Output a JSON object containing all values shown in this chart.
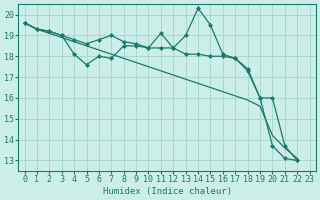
{
  "xlabel": "Humidex (Indice chaleur)",
  "ylabel": "",
  "bg_color": "#cceee8",
  "grid_color": "#aad8d0",
  "line_color": "#1a7a6a",
  "xlim": [
    -0.5,
    23.5
  ],
  "ylim": [
    12.5,
    20.5
  ],
  "yticks": [
    13,
    14,
    15,
    16,
    17,
    18,
    19,
    20
  ],
  "xticks": [
    0,
    1,
    2,
    3,
    4,
    5,
    6,
    7,
    8,
    9,
    10,
    11,
    12,
    13,
    14,
    15,
    16,
    17,
    18,
    19,
    20,
    21,
    22,
    23
  ],
  "series_straight": [
    19.6,
    19.3,
    19.1,
    18.9,
    18.7,
    18.5,
    18.3,
    18.1,
    17.9,
    17.7,
    17.5,
    17.3,
    17.1,
    16.9,
    16.7,
    16.5,
    16.3,
    16.1,
    15.9,
    15.6,
    14.2,
    13.6,
    13.1
  ],
  "series_mid": [
    19.6,
    19.3,
    19.2,
    19.0,
    18.1,
    17.6,
    18.0,
    17.9,
    18.5,
    18.5,
    18.4,
    18.4,
    18.4,
    18.1,
    18.1,
    18.0,
    18.0,
    17.9,
    17.3,
    16.0,
    13.7,
    13.1,
    13.0
  ],
  "series_jagged": [
    19.6,
    19.3,
    19.2,
    19.0,
    18.8,
    18.6,
    18.8,
    19.0,
    18.7,
    18.6,
    18.4,
    19.1,
    18.4,
    19.0,
    20.3,
    19.5,
    18.1,
    17.9,
    17.4,
    16.0,
    16.0,
    13.7,
    13.0
  ]
}
